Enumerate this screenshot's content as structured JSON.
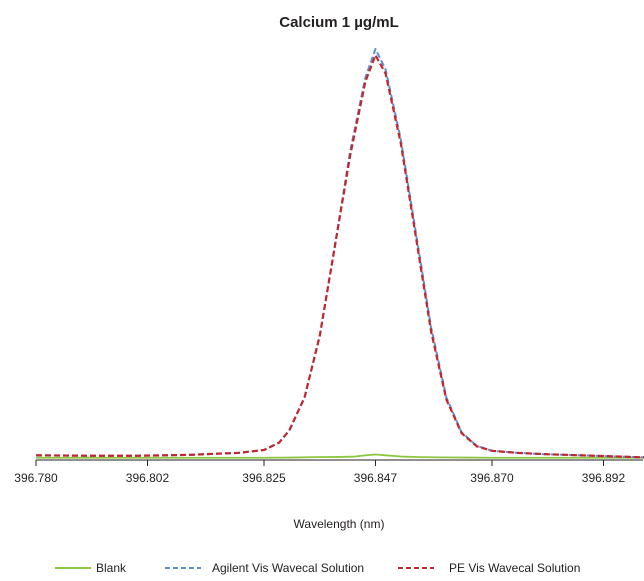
{
  "chart_data": {
    "type": "line",
    "title": "Calcium 1 µg/mL",
    "xlabel": "Wavelength (nm)",
    "ylabel": "",
    "xlim": [
      396.78,
      396.9
    ],
    "ylim": [
      0,
      100
    ],
    "x_ticks": [
      "396.780",
      "396.802",
      "396.825",
      "396.847",
      "396.870",
      "396.892"
    ],
    "x_tick_values": [
      396.78,
      396.802,
      396.825,
      396.847,
      396.87,
      396.892
    ],
    "grid": false,
    "legend_position": "bottom",
    "series": [
      {
        "name": "Blank",
        "color": "#8dc63f",
        "dash": "solid",
        "x": [
          396.78,
          396.79,
          396.8,
          396.81,
          396.82,
          396.825,
          396.83,
          396.835,
          396.84,
          396.843,
          396.845,
          396.847,
          396.849,
          396.852,
          396.856,
          396.86,
          396.865,
          396.87,
          396.88,
          396.89,
          396.9
        ],
        "y": [
          0.3,
          0.3,
          0.3,
          0.3,
          0.3,
          0.3,
          0.35,
          0.45,
          0.5,
          0.6,
          0.9,
          1.1,
          0.9,
          0.6,
          0.45,
          0.4,
          0.35,
          0.3,
          0.3,
          0.3,
          0.3
        ]
      },
      {
        "name": "Agilent Vis Wavecal Solution",
        "color": "#5b8fd4",
        "dash": "dashed",
        "x": [
          396.78,
          396.79,
          396.8,
          396.81,
          396.82,
          396.825,
          396.828,
          396.83,
          396.833,
          396.836,
          396.839,
          396.842,
          396.845,
          396.847,
          396.849,
          396.852,
          396.855,
          396.858,
          396.861,
          396.864,
          396.867,
          396.87,
          396.875,
          396.88,
          396.89,
          396.9
        ],
        "y": [
          0.9,
          0.8,
          0.8,
          1.0,
          1.5,
          2.2,
          4.0,
          7.0,
          15,
          30,
          52,
          75,
          93,
          100,
          95,
          78,
          55,
          32,
          15,
          6.5,
          3.2,
          2.0,
          1.5,
          1.2,
          0.8,
          0.4
        ]
      },
      {
        "name": "PE Vis Wavecal Solution",
        "color": "#c1272d",
        "dash": "dashed",
        "x": [
          396.78,
          396.79,
          396.8,
          396.81,
          396.82,
          396.825,
          396.828,
          396.83,
          396.833,
          396.836,
          396.839,
          396.842,
          396.845,
          396.847,
          396.849,
          396.852,
          396.855,
          396.858,
          396.861,
          396.864,
          396.867,
          396.87,
          396.875,
          396.88,
          396.89,
          396.9
        ],
        "y": [
          0.9,
          0.8,
          0.8,
          1.0,
          1.5,
          2.2,
          4.0,
          7.0,
          15,
          30,
          52,
          74,
          92,
          98.5,
          94,
          77,
          54,
          31,
          14.5,
          6.3,
          3.1,
          2.0,
          1.5,
          1.2,
          0.8,
          0.4
        ]
      }
    ]
  }
}
